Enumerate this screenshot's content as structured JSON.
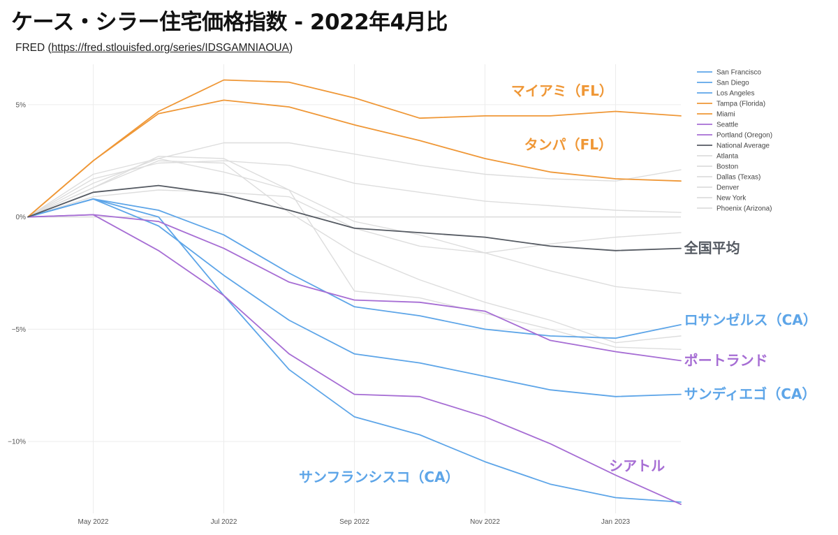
{
  "title": "ケース・シラー住宅価格指数 - 2022年4月比",
  "subtitle": {
    "prefix": "FRED (",
    "url": "https://fred.stlouisfed.org/series/IDSGAMNIAOUA",
    "suffix": ")"
  },
  "chart_data": {
    "type": "line",
    "x": [
      "2022-04",
      "2022-05",
      "2022-06",
      "2022-07",
      "2022-08",
      "2022-09",
      "2022-10",
      "2022-11",
      "2022-12",
      "2023-01",
      "2023-02"
    ],
    "x_tick_labels": [
      "May 2022",
      "Jul 2022",
      "Sep 2022",
      "Nov 2022",
      "Jan 2023"
    ],
    "x_tick_indices": [
      1,
      3,
      5,
      7,
      9
    ],
    "y_ticks": [
      5,
      0,
      -5,
      -10
    ],
    "y_tick_labels": [
      "5%",
      "0%",
      "−5%",
      "−10%"
    ],
    "ylim": [
      -13.2,
      6.8
    ],
    "y_unit": "%",
    "grid": true,
    "legend_position": "top-right",
    "series": [
      {
        "name": "San Francisco",
        "color": "#5da5e8",
        "values": [
          0,
          0.8,
          0.0,
          -3.5,
          -6.8,
          -8.9,
          -9.7,
          -10.9,
          -11.9,
          -12.5,
          -12.7
        ]
      },
      {
        "name": "San Diego",
        "color": "#5da5e8",
        "values": [
          0,
          0.8,
          -0.4,
          -2.6,
          -4.6,
          -6.1,
          -6.5,
          -7.1,
          -7.7,
          -8.0,
          -7.9
        ]
      },
      {
        "name": "Los Angeles",
        "color": "#5da5e8",
        "values": [
          0,
          0.8,
          0.3,
          -0.8,
          -2.5,
          -4.0,
          -4.4,
          -5.0,
          -5.3,
          -5.4,
          -4.8
        ]
      },
      {
        "name": "Tampa (Florida)",
        "color": "#ef9736",
        "values": [
          0,
          2.5,
          4.6,
          5.2,
          4.9,
          4.1,
          3.4,
          2.6,
          2.0,
          1.7,
          1.6
        ]
      },
      {
        "name": "Miami",
        "color": "#ef9736",
        "values": [
          0,
          2.5,
          4.7,
          6.1,
          6.0,
          5.3,
          4.4,
          4.5,
          4.5,
          4.7,
          4.5
        ]
      },
      {
        "name": "Seattle",
        "color": "#a66dd4",
        "values": [
          0,
          0.1,
          -1.5,
          -3.5,
          -6.1,
          -7.9,
          -8.0,
          -8.9,
          -10.1,
          -11.5,
          -12.8
        ]
      },
      {
        "name": "Portland (Oregon)",
        "color": "#a66dd4",
        "values": [
          0,
          0.1,
          -0.2,
          -1.4,
          -2.9,
          -3.7,
          -3.8,
          -4.2,
          -5.5,
          -6.0,
          -6.4
        ]
      },
      {
        "name": "National Average",
        "color": "#555a62",
        "values": [
          0,
          1.1,
          1.4,
          1.0,
          0.3,
          -0.5,
          -0.7,
          -0.9,
          -1.3,
          -1.5,
          -1.4
        ]
      },
      {
        "name": "Atlanta",
        "color": "#dddddd",
        "values": [
          0,
          1.9,
          2.6,
          3.3,
          3.3,
          2.8,
          2.3,
          1.9,
          1.7,
          1.6,
          2.1
        ]
      },
      {
        "name": "Boston",
        "color": "#dddddd",
        "values": [
          0,
          1.7,
          2.4,
          2.5,
          2.3,
          1.5,
          1.1,
          0.7,
          0.5,
          0.3,
          0.2
        ]
      },
      {
        "name": "Dallas (Texas)",
        "color": "#dddddd",
        "values": [
          0,
          1.5,
          2.6,
          2.0,
          1.2,
          -0.2,
          -0.8,
          -1.6,
          -2.4,
          -3.1,
          -3.4
        ]
      },
      {
        "name": "Denver",
        "color": "#dddddd",
        "values": [
          0,
          1.3,
          2.5,
          2.4,
          0.2,
          -1.6,
          -2.8,
          -3.8,
          -4.6,
          -5.6,
          -5.3
        ]
      },
      {
        "name": "New York",
        "color": "#dddddd",
        "values": [
          0,
          0.9,
          1.2,
          1.1,
          0.9,
          -0.5,
          -1.3,
          -1.6,
          -1.2,
          -0.9,
          -0.7
        ]
      },
      {
        "name": "Phoenix (Arizona)",
        "color": "#dddddd",
        "values": [
          0,
          1.3,
          2.7,
          2.6,
          1.2,
          -3.3,
          -3.6,
          -4.3,
          -5.0,
          -5.8,
          -5.9
        ]
      }
    ],
    "annotations": [
      {
        "text": "マイアミ（FL）",
        "color": "#ef9736",
        "y_value": 5.4,
        "x_index": 7.4
      },
      {
        "text": "タンパ（FL）",
        "color": "#ef9736",
        "y_value": 3.0,
        "x_index": 7.6
      },
      {
        "text": "全国平均",
        "color": "#555a62",
        "y_value": -1.6,
        "x_index": 10.05
      },
      {
        "text": "ロサンゼルス（CA）",
        "color": "#5da5e8",
        "y_value": -4.8,
        "x_index": 10.05
      },
      {
        "text": "ポートランド",
        "color": "#a66dd4",
        "y_value": -6.6,
        "x_index": 10.05
      },
      {
        "text": "サンディエゴ（CA）",
        "color": "#5da5e8",
        "y_value": -8.1,
        "x_index": 10.05
      },
      {
        "text": "シアトル",
        "color": "#a66dd4",
        "y_value": -11.3,
        "x_index": 8.9
      },
      {
        "text": "サンフランシスコ（CA）",
        "color": "#5da5e8",
        "y_value": -11.8,
        "x_index": 4.15
      }
    ]
  }
}
